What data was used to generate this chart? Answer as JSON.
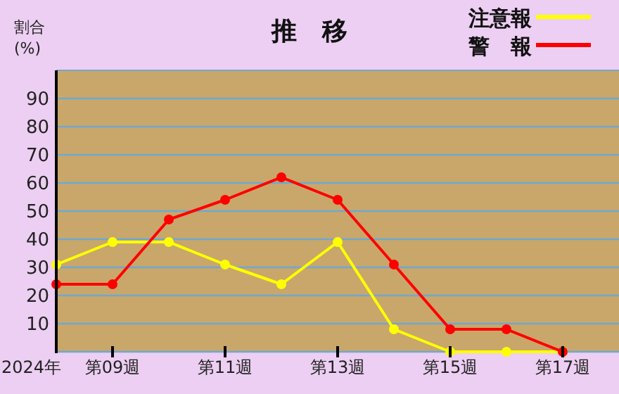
{
  "chart_data": {
    "type": "line",
    "title": "推　移",
    "ylabel": "割合\n(%)",
    "categories": [
      null,
      "第09週",
      null,
      "第11週",
      null,
      "第13週",
      null,
      "第15週",
      null,
      "第17週"
    ],
    "ylim": [
      0,
      100
    ],
    "yticks": [
      10,
      20,
      30,
      40,
      50,
      60,
      70,
      80,
      90
    ],
    "grid": "y",
    "legend": "top right",
    "marker": "circle",
    "line_style": "solid",
    "annotations": [
      "2024年"
    ],
    "series": [
      {
        "name": "注意報",
        "color": "#ffff00",
        "values": [
          31,
          39,
          39,
          31,
          24,
          39,
          8,
          0,
          0,
          0
        ]
      },
      {
        "name": "警　報",
        "color": "#ff0000",
        "values": [
          24,
          24,
          47,
          54,
          62,
          54,
          31,
          8,
          8,
          0
        ]
      }
    ]
  }
}
